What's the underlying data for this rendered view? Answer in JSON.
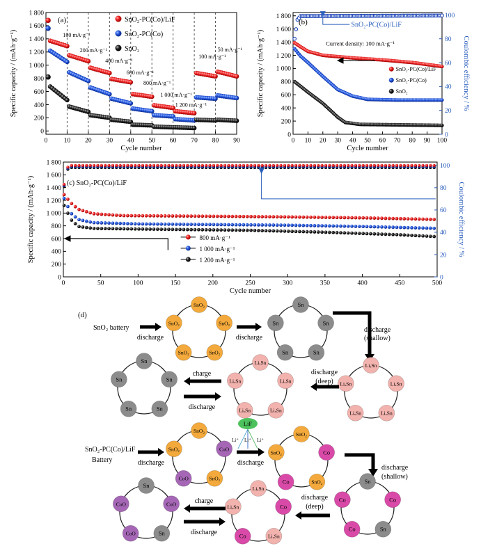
{
  "chart_data": [
    {
      "panel": "(a)",
      "type": "scatter",
      "xlabel": "Cycle number",
      "ylabel": "Specific capacity / (mAh·g⁻¹)",
      "xlim": [
        0,
        90
      ],
      "ylim": [
        -50,
        1800
      ],
      "xticks": [
        0,
        10,
        20,
        30,
        40,
        50,
        60,
        70,
        80,
        90
      ],
      "yticks": [
        0,
        200,
        400,
        600,
        800,
        1000,
        1200,
        1400,
        1600,
        1800
      ],
      "ytick_labels": [
        "0",
        "200",
        "400",
        "600",
        "800",
        "1 000",
        "1 200",
        "1 400",
        "1 600",
        "1 800"
      ],
      "legend": [
        "SnO₂-PC(Co)/LiF",
        "SnO₂-PC(Co)",
        "SnO₂"
      ],
      "rate_labels": [
        "100 mA·g⁻¹",
        "200 mA·g⁻¹",
        "400 mA·g⁻¹",
        "600 mA·g⁻¹",
        "800 mA·g⁻¹",
        "1 000 mA·g⁻¹",
        "1 200 mA·g⁻¹",
        "100 mA·g⁻¹",
        "50 mA·g⁻¹"
      ],
      "segment_boundaries": [
        10,
        20,
        30,
        40,
        50,
        60,
        70,
        80
      ],
      "series": [
        {
          "name": "SnO₂-PC(Co)/LiF",
          "first": 1680,
          "segments": [
            [
              1380,
              1290
            ],
            [
              1150,
              1060
            ],
            [
              960,
              880
            ],
            [
              790,
              740
            ],
            [
              560,
              520
            ],
            [
              390,
              350
            ],
            [
              300,
              270
            ],
            [
              880,
              830
            ],
            [
              900,
              830
            ]
          ]
        },
        {
          "name": "SnO₂-PC(Co)",
          "first": 1560,
          "segments": [
            [
              1240,
              1050
            ],
            [
              890,
              760
            ],
            [
              660,
              560
            ],
            [
              490,
              420
            ],
            [
              340,
              300
            ],
            [
              240,
              220
            ],
            [
              180,
              160
            ],
            [
              510,
              490
            ],
            [
              540,
              500
            ]
          ]
        },
        {
          "name": "SnO₂",
          "first": 820,
          "segments": [
            [
              700,
              470
            ],
            [
              370,
              290
            ],
            [
              240,
              200
            ],
            [
              170,
              140
            ],
            [
              95,
              85
            ],
            [
              65,
              55
            ],
            [
              55,
              45
            ],
            [
              170,
              160
            ],
            [
              170,
              155
            ]
          ]
        }
      ]
    },
    {
      "panel": "(b)",
      "type": "scatter",
      "xlabel": "Cycle number",
      "ylabel": "Specific capacity / (mAh·g⁻¹)",
      "y2label": "Coulombic efficiency / %",
      "xlim": [
        0,
        100
      ],
      "ylim": [
        0,
        1850
      ],
      "y2lim": [
        0,
        102
      ],
      "xticks": [
        0,
        10,
        20,
        30,
        40,
        50,
        60,
        70,
        80,
        90,
        100
      ],
      "yticks": [
        0,
        200,
        400,
        600,
        800,
        1000,
        1200,
        1400,
        1600,
        1800
      ],
      "ytick_labels": [
        "0",
        "200",
        "400",
        "600",
        "800",
        "1 000",
        "1 200",
        "1 400",
        "1 600",
        "1 800"
      ],
      "y2ticks": [
        0,
        20,
        40,
        60,
        80,
        100
      ],
      "annotation": "Current density: 100 mA·g⁻¹",
      "ce_label": "SnO₂-PC(Co)/LiF",
      "legend": [
        "SnO₂-PC(Co)/LiF",
        "SnO₂-PC(Co)",
        "SnO₂"
      ],
      "series": [
        {
          "name": "SnO₂-PC(Co)/LiF",
          "points": [
            [
              1,
              1390
            ],
            [
              5,
              1330
            ],
            [
              10,
              1260
            ],
            [
              20,
              1200
            ],
            [
              40,
              1160
            ],
            [
              60,
              1130
            ],
            [
              80,
              1090
            ],
            [
              100,
              1030
            ]
          ]
        },
        {
          "name": "SnO₂-PC(Co)",
          "points": [
            [
              1,
              1300
            ],
            [
              5,
              1190
            ],
            [
              10,
              1090
            ],
            [
              20,
              880
            ],
            [
              30,
              680
            ],
            [
              40,
              580
            ],
            [
              50,
              530
            ],
            [
              70,
              520
            ],
            [
              100,
              520
            ]
          ]
        },
        {
          "name": "SnO₂",
          "points": [
            [
              1,
              800
            ],
            [
              5,
              730
            ],
            [
              10,
              640
            ],
            [
              20,
              470
            ],
            [
              30,
              260
            ],
            [
              35,
              180
            ],
            [
              45,
              150
            ],
            [
              100,
              135
            ]
          ]
        },
        {
          "name": "Coulombic efficiency",
          "axis": "y2",
          "points": [
            [
              1,
              80
            ],
            [
              3,
              96
            ],
            [
              5,
              99
            ],
            [
              100,
              99.5
            ]
          ]
        }
      ]
    },
    {
      "panel": "(c)",
      "type": "scatter",
      "xlabel": "Cycle number",
      "ylabel": "Specific capacity / (mAh·g⁻¹)",
      "y2label": "Coulombic efficiency / %",
      "xlim": [
        0,
        500
      ],
      "ylim": [
        0,
        1800
      ],
      "y2lim": [
        0,
        103
      ],
      "xticks": [
        0,
        50,
        100,
        150,
        200,
        250,
        300,
        350,
        400,
        450,
        500
      ],
      "yticks": [
        0,
        200,
        400,
        600,
        800,
        1000,
        1200,
        1400,
        1600,
        1800
      ],
      "ytick_labels": [
        "0",
        "200",
        "400",
        "600",
        "800",
        "1 000",
        "1 200",
        "1 400",
        "1 600",
        "1 800"
      ],
      "y2ticks": [
        0,
        20,
        40,
        60,
        80,
        100
      ],
      "panel_title": "(c) SnO₂-PC(Co)/LiF",
      "legend": [
        "800 mA·g⁻¹",
        "1 000 mA·g⁻¹",
        "1 200 mA·g⁻¹"
      ],
      "series": [
        {
          "name": "800 mA·g⁻¹",
          "points": [
            [
              1,
              1290
            ],
            [
              10,
              1160
            ],
            [
              20,
              1060
            ],
            [
              40,
              990
            ],
            [
              80,
              960
            ],
            [
              200,
              950
            ],
            [
              300,
              940
            ],
            [
              400,
              925
            ],
            [
              500,
              900
            ]
          ]
        },
        {
          "name": "1 000 mA·g⁻¹",
          "points": [
            [
              1,
              1230
            ],
            [
              10,
              1000
            ],
            [
              20,
              900
            ],
            [
              40,
              850
            ],
            [
              100,
              830
            ],
            [
              300,
              810
            ],
            [
              400,
              790
            ],
            [
              500,
              760
            ]
          ]
        },
        {
          "name": "1 200 mA·g⁻¹",
          "points": [
            [
              1,
              1120
            ],
            [
              10,
              900
            ],
            [
              20,
              790
            ],
            [
              40,
              760
            ],
            [
              100,
              750
            ],
            [
              250,
              730
            ],
            [
              350,
              700
            ],
            [
              450,
              660
            ],
            [
              500,
              630
            ]
          ]
        },
        {
          "name": "Coulombic efficiency",
          "axis": "y2",
          "points": [
            [
              1,
              82
            ],
            [
              5,
              97
            ],
            [
              10,
              99
            ],
            [
              500,
              99
            ]
          ]
        }
      ]
    }
  ],
  "diagram_d": {
    "panel_label": "(d)",
    "row1_title": "SnO₂ battery",
    "row2_title_line1": "SnO₂-PC(Co)/LiF",
    "row2_title_line2": "Battery",
    "labels": {
      "discharge": "discharge",
      "charge": "charge",
      "discharge_shallow_1": "discharge",
      "discharge_shallow_2": "(shallow)",
      "discharge_deep_1": "discharge",
      "discharge_deep_2": "(deep)",
      "lif": "LiF",
      "li_ion": "Li⁺"
    },
    "rings": {
      "A": [
        "SnO₂",
        "SnO₂",
        "SnO₂",
        "SnO₂",
        "SnO₂"
      ],
      "B": [
        "Sn",
        "Sn",
        "Sn",
        "Sn",
        "Sn"
      ],
      "C": [
        "LiₓSn",
        "LiₓSn",
        "LiₓSn",
        "LiₓSn",
        "LiₓSn"
      ],
      "D": [
        "LiₓSn",
        "LiₓSn",
        "LiₓSn",
        "LiₓSn",
        "LiₓSn"
      ],
      "E": [
        "Sn",
        "Sn",
        "Sn",
        "Sn",
        "Sn"
      ],
      "F": [
        "SnO₂",
        "CoO",
        "SnO₂",
        "CoO",
        "SnO₂"
      ],
      "G": [
        "SnO₂",
        "Co",
        "SnO₂",
        "Co",
        "SnO₂"
      ],
      "H": [
        "Sn",
        "Co",
        "Sn",
        "Co",
        "Co"
      ],
      "I": [
        "LiₓSn",
        "Co",
        "LiₓSn",
        "Co",
        "LiₓSn"
      ],
      "J": [
        "Sn",
        "CoO",
        "Sn",
        "CoO",
        "CoO"
      ]
    },
    "colors": {
      "SnO2": "#f3a93b",
      "Sn": "#8c8c8c",
      "LixSn": "#f2b2ad",
      "LixSn_alt": "#f6c39f",
      "CoO": "#a567b5",
      "Co": "#d94aa8",
      "LiF": "#4dc25c"
    }
  }
}
